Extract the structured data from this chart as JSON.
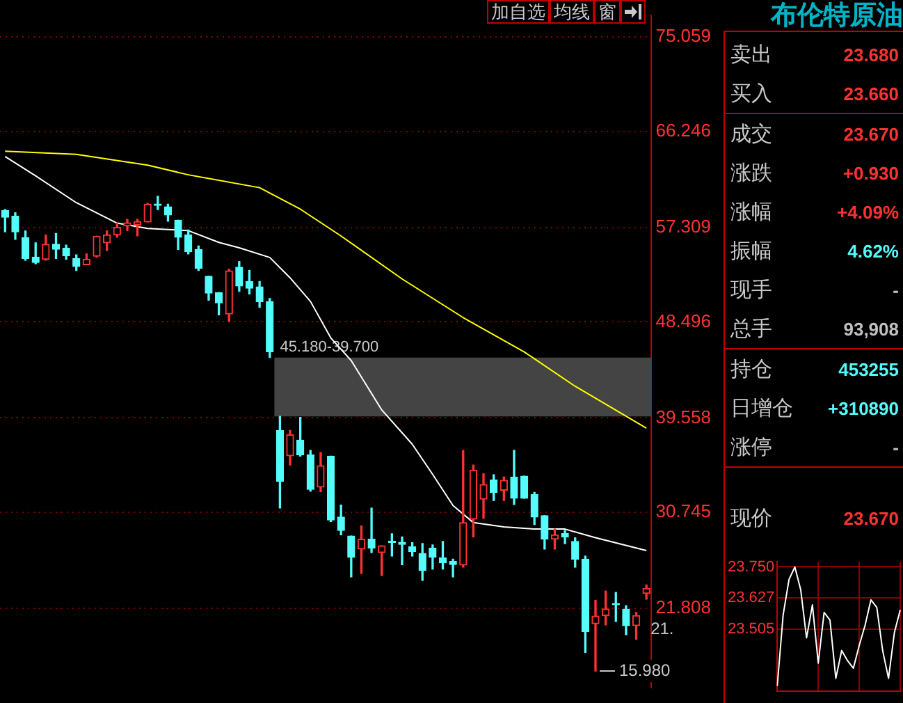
{
  "chart_data": [
    {
      "type": "candlestick",
      "categories": [
        null,
        null,
        null,
        null,
        null,
        null,
        null,
        null,
        null,
        null,
        null,
        null,
        null,
        null,
        null,
        null,
        null,
        null,
        null,
        null,
        null,
        null,
        null,
        null,
        null,
        null,
        null,
        null,
        null,
        null,
        null,
        null,
        null,
        null,
        null,
        null,
        null,
        null,
        null,
        null,
        null,
        null,
        null,
        null,
        null,
        null,
        null,
        null,
        null,
        null,
        null,
        null,
        null,
        null,
        null,
        null,
        null,
        null,
        null,
        null,
        null,
        null,
        null,
        null
      ],
      "ohlc": [
        [
          58.87,
          58.96,
          56.89,
          58.25
        ],
        [
          58.34,
          58.67,
          56.19,
          56.89
        ],
        [
          56.35,
          56.97,
          54.24,
          54.4
        ],
        [
          54.53,
          55.86,
          53.91,
          54.03
        ],
        [
          54.33,
          56.6,
          54.24,
          55.73
        ],
        [
          55.73,
          56.73,
          54.4,
          55.27
        ],
        [
          55.36,
          55.65,
          54.33,
          54.65
        ],
        [
          54.4,
          54.74,
          53.29,
          53.66
        ],
        [
          53.83,
          54.83,
          53.83,
          54.33
        ],
        [
          54.62,
          56.48,
          54.53,
          56.48
        ],
        [
          55.86,
          56.97,
          55.15,
          56.6
        ],
        [
          56.6,
          57.72,
          56.39,
          57.31
        ],
        [
          57.43,
          58.05,
          57.01,
          57.72
        ],
        [
          57.51,
          58.05,
          56.51,
          57.84
        ],
        [
          57.81,
          59.54,
          57.81,
          59.46
        ],
        [
          59.4,
          60.2,
          58.96,
          59.35
        ],
        [
          59.21,
          59.46,
          57.88,
          58.46
        ],
        [
          57.97,
          57.97,
          55.24,
          56.39
        ],
        [
          56.6,
          57.06,
          54.83,
          55.03
        ],
        [
          55.24,
          55.57,
          53.29,
          53.5
        ],
        [
          52.75,
          52.75,
          50.52,
          51.18
        ],
        [
          51.23,
          51.23,
          49.15,
          50.27
        ],
        [
          49.24,
          53.41,
          48.53,
          53.25
        ],
        [
          53.59,
          54.12,
          51.35,
          51.85
        ],
        [
          52.26,
          53.29,
          51.1,
          51.64
        ],
        [
          51.76,
          52.26,
          49.86,
          50.39
        ],
        [
          50.39,
          50.68,
          45.18,
          45.72
        ],
        [
          38.39,
          39.7,
          31.16,
          33.64
        ],
        [
          36.03,
          38.39,
          35.16,
          37.98
        ],
        [
          37.48,
          39.6,
          36.0,
          36.12
        ],
        [
          36.12,
          36.53,
          32.73,
          32.89
        ],
        [
          33.1,
          36.33,
          32.68,
          35.09
        ],
        [
          35.99,
          35.99,
          29.9,
          30.04
        ],
        [
          30.32,
          31.44,
          28.67,
          29.08
        ],
        [
          28.55,
          28.55,
          24.74,
          26.6
        ],
        [
          27.34,
          29.5,
          25.07,
          28.26
        ],
        [
          28.26,
          31.15,
          27.02,
          27.43
        ],
        [
          27.02,
          27.64,
          24.87,
          27.64
        ],
        [
          27.99,
          28.76,
          26.69,
          27.95
        ],
        [
          27.97,
          28.47,
          25.88,
          27.77
        ],
        [
          27.55,
          27.93,
          26.69,
          27.1
        ],
        [
          26.93,
          27.85,
          24.42,
          25.36
        ],
        [
          27.43,
          27.72,
          25.48,
          26.6
        ],
        [
          26.52,
          28.05,
          25.48,
          26.06
        ],
        [
          26.19,
          26.4,
          24.74,
          25.9
        ],
        [
          25.85,
          36.53,
          25.66,
          29.79
        ],
        [
          30.13,
          35.16,
          28.47,
          34.69
        ],
        [
          31.99,
          34.35,
          30.2,
          33.35
        ],
        [
          33.76,
          34.26,
          31.86,
          32.61
        ],
        [
          32.81,
          34.05,
          31.86,
          33.73
        ],
        [
          34.05,
          36.53,
          31.49,
          32.07
        ],
        [
          34.13,
          34.13,
          32.07,
          32.07
        ],
        [
          32.4,
          32.61,
          29.62,
          30.32
        ],
        [
          30.45,
          30.45,
          27.34,
          28.26
        ],
        [
          28.26,
          29.2,
          27.34,
          28.67
        ],
        [
          28.8,
          29.08,
          27.84,
          28.47
        ],
        [
          28.05,
          28.39,
          25.66,
          26.4
        ],
        [
          26.4,
          26.69,
          17.71,
          19.65
        ],
        [
          20.39,
          22.55,
          15.98,
          21.1
        ],
        [
          21.14,
          23.42,
          20.27,
          21.76
        ],
        [
          22.2,
          23.29,
          20.6,
          22.15
        ],
        [
          21.72,
          22.06,
          19.36,
          20.2
        ],
        [
          20.2,
          21.44,
          18.95,
          21.14
        ],
        [
          23.21,
          23.99,
          22.67,
          23.67
        ]
      ],
      "series": [
        {
          "type": "line",
          "color": "#ffffff",
          "values": [
            63.9,
            null,
            null,
            62.1,
            null,
            null,
            null,
            59.6,
            null,
            null,
            null,
            57.7,
            null,
            null,
            57.2,
            null,
            null,
            null,
            57.0,
            null,
            null,
            55.9,
            null,
            55.4,
            null,
            null,
            54.5,
            null,
            52.6,
            null,
            50.4,
            null,
            47.0,
            null,
            44.9,
            null,
            null,
            40.3,
            null,
            null,
            37.1,
            null,
            34.3,
            null,
            31.4,
            null,
            29.8,
            null,
            null,
            29.4,
            null,
            null,
            29.2,
            null,
            null,
            29.2,
            null,
            null,
            28.4,
            null,
            null,
            null,
            null,
            27.2
          ]
        },
        {
          "type": "line",
          "color": "#ffff00",
          "values": [
            64.4,
            null,
            null,
            null,
            null,
            null,
            null,
            64.1,
            null,
            null,
            null,
            null,
            null,
            null,
            63.1,
            null,
            null,
            null,
            62.2,
            null,
            null,
            null,
            null,
            null,
            null,
            61.0,
            null,
            null,
            null,
            59.0,
            null,
            null,
            null,
            56.5,
            null,
            null,
            null,
            null,
            null,
            52.5,
            null,
            null,
            null,
            null,
            null,
            48.9,
            null,
            null,
            null,
            null,
            null,
            45.7,
            null,
            null,
            null,
            null,
            42.5,
            null,
            null,
            null,
            null,
            null,
            null,
            38.6
          ]
        }
      ],
      "ylim": [
        14.4,
        77.08
      ],
      "yticks": [
        21.808,
        30.745,
        39.558,
        48.496,
        57.309,
        66.246,
        75.059
      ],
      "grid": "y",
      "legend": false,
      "bands": [
        {
          "axis": "y",
          "from": 39.7,
          "to": 45.18,
          "label": "45.180-39.700",
          "color": "#444444"
        }
      ],
      "annotations": [
        "15.980",
        "21.",
        "加自选",
        "均线",
        "窗"
      ]
    },
    {
      "type": "other",
      "title": "布伦特原油",
      "categories": [
        "卖出",
        "买入",
        "成交",
        "涨跌",
        "涨幅",
        "振幅",
        "现手",
        "总手",
        "持仓",
        "日增仓",
        "涨停",
        "现价"
      ],
      "value_labels": [
        "23.680",
        "23.660",
        "23.670",
        "+0.930",
        "+4.09%",
        "4.62%",
        "-",
        "93,908",
        "453255",
        "+310890",
        "-",
        "23.670"
      ],
      "colors": [
        "#ff3232",
        "#ff3232",
        "#ff3232",
        "#ff3232",
        "#ff3232",
        "#54fcfc",
        "#c0c0c0",
        "#c0c0c0",
        "#54fcfc",
        "#54fcfc",
        "#c0c0c0",
        "#ff3232"
      ]
    },
    {
      "type": "line",
      "categories": [
        null,
        null,
        null,
        null,
        null,
        null,
        null,
        null,
        null,
        null,
        null,
        null,
        null,
        null,
        null,
        null,
        null,
        null,
        null,
        null,
        null,
        null
      ],
      "values": [
        23.28,
        23.56,
        23.7,
        23.75,
        23.66,
        23.47,
        23.6,
        23.37,
        23.57,
        23.54,
        23.31,
        23.42,
        23.38,
        23.35,
        23.44,
        23.52,
        23.62,
        23.59,
        23.42,
        23.31,
        23.49,
        23.58
      ],
      "color": "#ffffff",
      "ylim": [
        23.26,
        23.77
      ],
      "yticks": [
        {
          "value": 23.75,
          "label": "23.750"
        },
        23.627,
        23.505
      ],
      "grid": true
    }
  ]
}
